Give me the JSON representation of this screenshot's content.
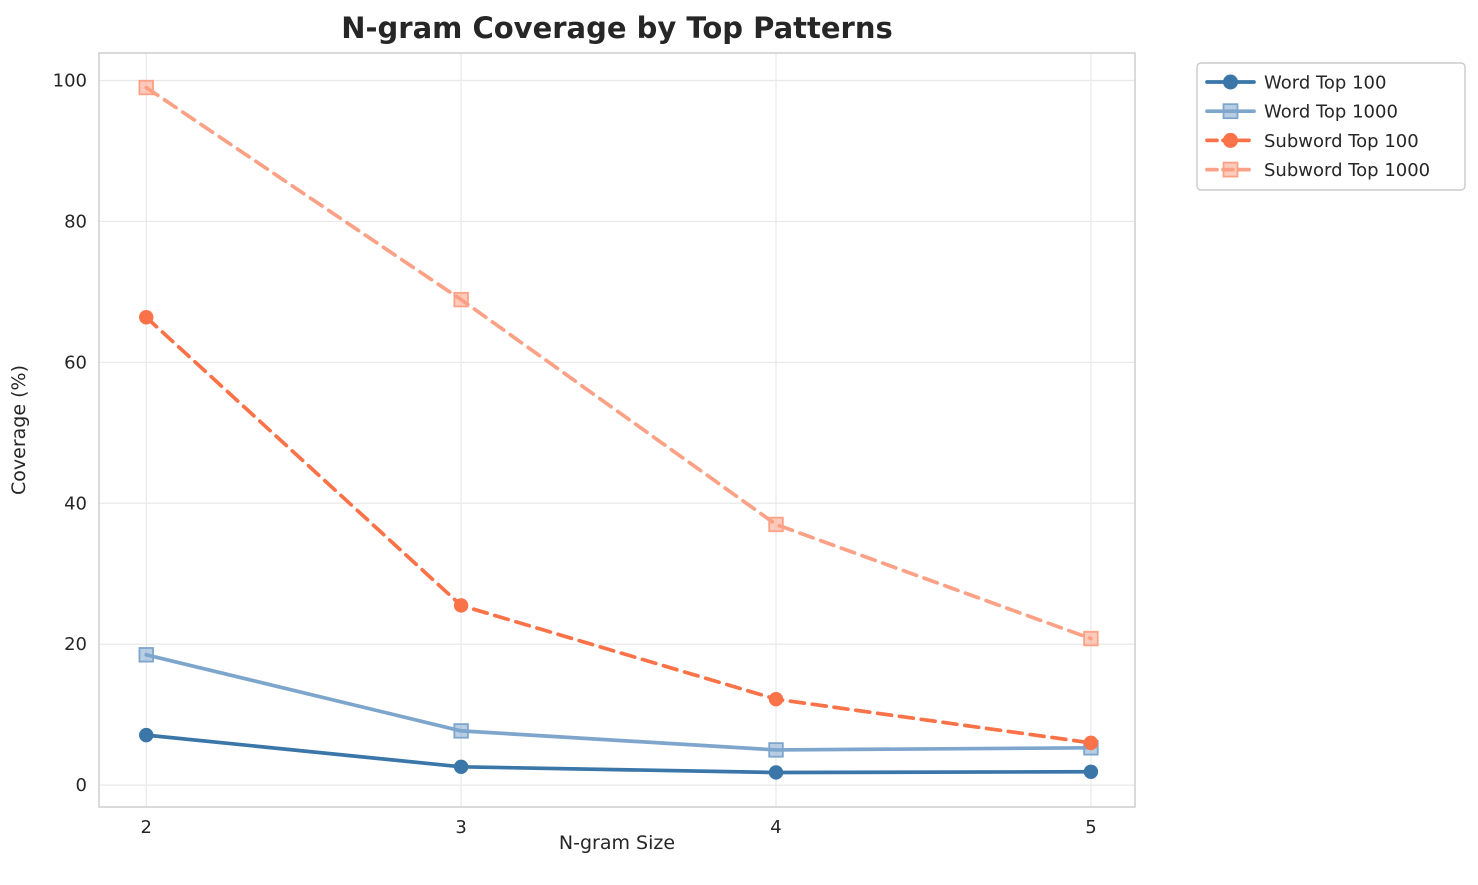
{
  "page": {
    "background_color": "#ffffff"
  },
  "chart_data": {
    "type": "line",
    "title": "N-gram Coverage by Top Patterns",
    "xlabel": "N-gram Size",
    "ylabel": "Coverage (%)",
    "x": [
      2,
      3,
      4,
      5
    ],
    "xticks": [
      "2",
      "3",
      "4",
      "5"
    ],
    "yticks": [
      "0",
      "20",
      "40",
      "60",
      "80",
      "100"
    ],
    "ytick_values": [
      0,
      20,
      40,
      60,
      80,
      100
    ],
    "xlim": [
      1.85,
      5.14
    ],
    "ylim": [
      -3.1,
      103.9
    ],
    "grid": true,
    "grid_color": "#e9e9e9",
    "spine_color": "#cbcbcb",
    "legend_position": "outside-top-right",
    "series": [
      {
        "name": "Word Top 100",
        "color": "#3a76a8",
        "marker": "circle",
        "line_style": "solid",
        "values": [
          7.1,
          2.6,
          1.8,
          1.9
        ]
      },
      {
        "name": "Word Top 1000",
        "color": "#7ea6cd",
        "marker": "square",
        "line_style": "solid",
        "values": [
          18.5,
          7.7,
          5.0,
          5.3
        ]
      },
      {
        "name": "Subword Top 100",
        "color": "#fa7248",
        "marker": "circle",
        "line_style": "dashed",
        "values": [
          66.4,
          25.5,
          12.2,
          6.0
        ]
      },
      {
        "name": "Subword Top 1000",
        "color": "#fba185",
        "marker": "square",
        "line_style": "dashed",
        "values": [
          99.0,
          68.9,
          37.0,
          20.8
        ]
      }
    ]
  }
}
